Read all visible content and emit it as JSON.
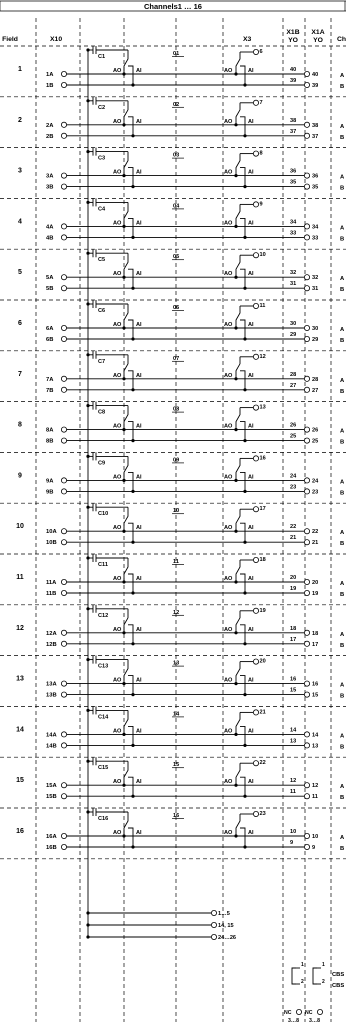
{
  "header": {
    "title": "Channels1 … 16"
  },
  "columns": {
    "field": "Field",
    "x10": "X10",
    "x3": "X3",
    "x1b_name": "X1B",
    "x1b_sub": "YO",
    "x1a_name": "X1A",
    "x1a_sub": "YO",
    "ch": "Ch"
  },
  "channels": [
    {
      "field": "1",
      "in_a": "1A",
      "in_b": "1B",
      "cap": "C1",
      "num": "01",
      "x3": "6",
      "yo_a": "40",
      "yo_b": "39",
      "ch_a": "A",
      "ch_b": "B"
    },
    {
      "field": "2",
      "in_a": "2A",
      "in_b": "2B",
      "cap": "C2",
      "num": "02",
      "x3": "7",
      "yo_a": "38",
      "yo_b": "37",
      "ch_a": "A",
      "ch_b": "B"
    },
    {
      "field": "3",
      "in_a": "3A",
      "in_b": "3B",
      "cap": "C3",
      "num": "03",
      "x3": "8",
      "yo_a": "36",
      "yo_b": "35",
      "ch_a": "A",
      "ch_b": "B"
    },
    {
      "field": "4",
      "in_a": "4A",
      "in_b": "4B",
      "cap": "C4",
      "num": "04",
      "x3": "9",
      "yo_a": "34",
      "yo_b": "33",
      "ch_a": "A",
      "ch_b": "B"
    },
    {
      "field": "5",
      "in_a": "5A",
      "in_b": "5B",
      "cap": "C5",
      "num": "05",
      "x3": "10",
      "yo_a": "32",
      "yo_b": "31",
      "ch_a": "A",
      "ch_b": "B"
    },
    {
      "field": "6",
      "in_a": "6A",
      "in_b": "6B",
      "cap": "C6",
      "num": "06",
      "x3": "11",
      "yo_a": "30",
      "yo_b": "29",
      "ch_a": "A",
      "ch_b": "B"
    },
    {
      "field": "7",
      "in_a": "7A",
      "in_b": "7B",
      "cap": "C7",
      "num": "07",
      "x3": "12",
      "yo_a": "28",
      "yo_b": "27",
      "ch_a": "A",
      "ch_b": "B"
    },
    {
      "field": "8",
      "in_a": "8A",
      "in_b": "8B",
      "cap": "C8",
      "num": "08",
      "x3": "13",
      "yo_a": "26",
      "yo_b": "25",
      "ch_a": "A",
      "ch_b": "B"
    },
    {
      "field": "9",
      "in_a": "9A",
      "in_b": "9B",
      "cap": "C9",
      "num": "09",
      "x3": "16",
      "yo_a": "24",
      "yo_b": "23",
      "ch_a": "A",
      "ch_b": "B"
    },
    {
      "field": "10",
      "in_a": "10A",
      "in_b": "10B",
      "cap": "C10",
      "num": "10",
      "x3": "17",
      "yo_a": "22",
      "yo_b": "21",
      "ch_a": "A",
      "ch_b": "B"
    },
    {
      "field": "11",
      "in_a": "11A",
      "in_b": "11B",
      "cap": "C11",
      "num": "11",
      "x3": "18",
      "yo_a": "20",
      "yo_b": "19",
      "ch_a": "A",
      "ch_b": "B"
    },
    {
      "field": "12",
      "in_a": "12A",
      "in_b": "12B",
      "cap": "C12",
      "num": "12",
      "x3": "19",
      "yo_a": "18",
      "yo_b": "17",
      "ch_a": "A",
      "ch_b": "B"
    },
    {
      "field": "13",
      "in_a": "13A",
      "in_b": "13B",
      "cap": "C13",
      "num": "13",
      "x3": "20",
      "yo_a": "16",
      "yo_b": "15",
      "ch_a": "A",
      "ch_b": "B"
    },
    {
      "field": "14",
      "in_a": "14A",
      "in_b": "14B",
      "cap": "C14",
      "num": "14",
      "x3": "21",
      "yo_a": "14",
      "yo_b": "13",
      "ch_a": "A",
      "ch_b": "B"
    },
    {
      "field": "15",
      "in_a": "15A",
      "in_b": "15B",
      "cap": "C15",
      "num": "15",
      "x3": "22",
      "yo_a": "12",
      "yo_b": "11",
      "ch_a": "A",
      "ch_b": "B"
    },
    {
      "field": "16",
      "in_a": "16A",
      "in_b": "16B",
      "cap": "C16",
      "num": "16",
      "x3": "23",
      "yo_a": "10",
      "yo_b": "9",
      "ch_a": "A",
      "ch_b": "B"
    }
  ],
  "labels": {
    "ao": "AO",
    "ai": "AI"
  },
  "bus": {
    "labels": [
      "1…5",
      "14, 15",
      "24…26"
    ]
  },
  "footer": {
    "contact_1": "1",
    "contact_2": "2",
    "cbs": "CBS",
    "nc_label": "NC",
    "nc_range": "3…8"
  }
}
